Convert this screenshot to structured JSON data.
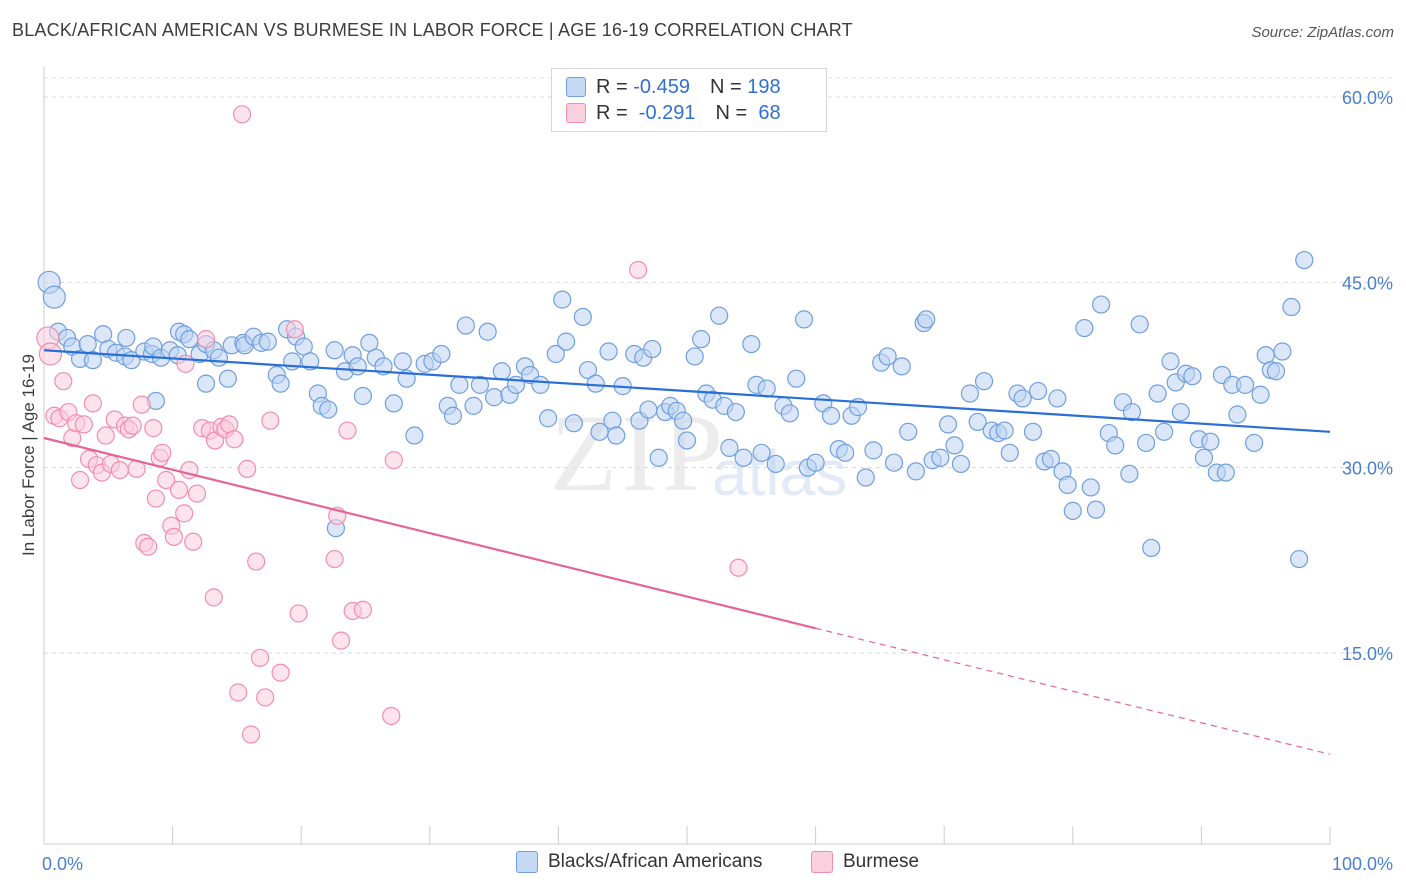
{
  "header": {
    "title": "BLACK/AFRICAN AMERICAN VS BURMESE IN LABOR FORCE | AGE 16-19 CORRELATION CHART",
    "source": "Source: ZipAtlas.com"
  },
  "watermark": {
    "zip": "ZIP",
    "atlas": "atlas"
  },
  "legend": {
    "rows": [
      {
        "r_label": "R = ",
        "r_value": "-0.459",
        "n_label": "N = ",
        "n_value": "198",
        "color": "#6f9fe0"
      },
      {
        "r_label": "R = ",
        "r_value": " -0.291",
        "n_label": "N = ",
        "n_value": " 68",
        "color": "#f28db0"
      }
    ]
  },
  "bottom_legend": [
    {
      "label": "Blacks/African Americans",
      "color": "#6f9fe0"
    },
    {
      "label": "Burmese",
      "color": "#f28db0"
    }
  ],
  "chart_data": {
    "type": "scatter",
    "title": "BLACK/AFRICAN AMERICAN VS BURMESE IN LABOR FORCE | AGE 16-19 CORRELATION CHART",
    "xlabel": "",
    "ylabel": "In Labor Force | Age 16-19",
    "xlim": [
      0,
      100
    ],
    "ylim": [
      0,
      65
    ],
    "x_tick_labels": [
      "0.0%",
      "100.0%"
    ],
    "y_ticks": [
      15,
      30,
      45,
      60
    ],
    "y_tick_labels": [
      "15.0%",
      "30.0%",
      "45.0%",
      "60.0%"
    ],
    "grid": true,
    "legend_position": "top-center",
    "series": [
      {
        "name": "Blacks/African Americans",
        "color": "#6f9fe0",
        "trend": {
          "x0": 0,
          "y0": 39.5,
          "x1": 100,
          "y1": 32.9,
          "dashed_from": null
        },
        "points": [
          [
            0.4,
            45.0
          ],
          [
            0.8,
            43.8
          ],
          [
            1.1,
            41.0
          ],
          [
            1.8,
            40.5
          ],
          [
            2.2,
            39.8
          ],
          [
            2.8,
            38.8
          ],
          [
            3.4,
            40.0
          ],
          [
            3.8,
            38.7
          ],
          [
            4.6,
            40.8
          ],
          [
            5.0,
            39.6
          ],
          [
            5.6,
            39.3
          ],
          [
            6.3,
            39.0
          ],
          [
            6.4,
            40.5
          ],
          [
            6.8,
            38.7
          ],
          [
            7.8,
            39.4
          ],
          [
            8.4,
            39.2
          ],
          [
            8.5,
            39.8
          ],
          [
            8.7,
            35.4
          ],
          [
            9.1,
            38.9
          ],
          [
            9.8,
            39.5
          ],
          [
            10.4,
            39.1
          ],
          [
            10.5,
            41.0
          ],
          [
            10.9,
            40.8
          ],
          [
            11.3,
            40.4
          ],
          [
            12.1,
            39.2
          ],
          [
            12.6,
            36.8
          ],
          [
            12.6,
            40.0
          ],
          [
            13.2,
            39.5
          ],
          [
            13.6,
            38.9
          ],
          [
            14.3,
            37.2
          ],
          [
            14.6,
            39.9
          ],
          [
            15.5,
            40.1
          ],
          [
            15.6,
            39.9
          ],
          [
            16.3,
            40.6
          ],
          [
            16.9,
            40.1
          ],
          [
            17.4,
            40.2
          ],
          [
            18.1,
            37.5
          ],
          [
            18.4,
            36.8
          ],
          [
            18.9,
            41.2
          ],
          [
            19.3,
            38.6
          ],
          [
            19.6,
            40.6
          ],
          [
            20.2,
            39.8
          ],
          [
            20.7,
            38.6
          ],
          [
            21.3,
            36.0
          ],
          [
            21.6,
            35.0
          ],
          [
            22.1,
            34.7
          ],
          [
            22.6,
            39.5
          ],
          [
            22.7,
            25.1
          ],
          [
            23.4,
            37.8
          ],
          [
            24.0,
            39.1
          ],
          [
            24.4,
            38.2
          ],
          [
            24.8,
            35.8
          ],
          [
            25.3,
            40.1
          ],
          [
            25.8,
            38.9
          ],
          [
            26.4,
            38.2
          ],
          [
            27.2,
            35.2
          ],
          [
            27.9,
            38.6
          ],
          [
            28.2,
            37.2
          ],
          [
            28.8,
            32.6
          ],
          [
            29.6,
            38.4
          ],
          [
            30.2,
            38.6
          ],
          [
            30.9,
            39.2
          ],
          [
            31.4,
            35.0
          ],
          [
            31.8,
            34.2
          ],
          [
            32.3,
            36.7
          ],
          [
            32.8,
            41.5
          ],
          [
            33.4,
            35.0
          ],
          [
            33.9,
            36.7
          ],
          [
            34.5,
            41.0
          ],
          [
            35.0,
            35.7
          ],
          [
            35.6,
            37.8
          ],
          [
            36.2,
            35.9
          ],
          [
            36.7,
            36.7
          ],
          [
            37.4,
            38.2
          ],
          [
            37.8,
            37.5
          ],
          [
            38.6,
            36.7
          ],
          [
            39.2,
            34.0
          ],
          [
            39.8,
            39.2
          ],
          [
            40.3,
            43.6
          ],
          [
            40.6,
            40.2
          ],
          [
            41.2,
            33.6
          ],
          [
            41.9,
            42.2
          ],
          [
            42.3,
            37.9
          ],
          [
            42.9,
            36.8
          ],
          [
            43.2,
            32.9
          ],
          [
            43.9,
            39.4
          ],
          [
            44.2,
            33.8
          ],
          [
            44.5,
            32.6
          ],
          [
            45.0,
            36.6
          ],
          [
            45.9,
            39.2
          ],
          [
            46.3,
            33.8
          ],
          [
            46.6,
            38.9
          ],
          [
            47.0,
            34.7
          ],
          [
            47.3,
            39.6
          ],
          [
            47.8,
            30.8
          ],
          [
            48.3,
            34.5
          ],
          [
            48.7,
            35.0
          ],
          [
            49.2,
            34.6
          ],
          [
            49.7,
            33.8
          ],
          [
            50.0,
            32.2
          ],
          [
            50.6,
            39.0
          ],
          [
            51.1,
            40.4
          ],
          [
            51.5,
            36.0
          ],
          [
            52.0,
            35.5
          ],
          [
            52.5,
            42.3
          ],
          [
            52.9,
            35.0
          ],
          [
            53.3,
            31.6
          ],
          [
            53.8,
            34.5
          ],
          [
            54.4,
            30.8
          ],
          [
            55.0,
            40.0
          ],
          [
            55.4,
            36.7
          ],
          [
            55.8,
            31.2
          ],
          [
            56.2,
            36.4
          ],
          [
            56.9,
            30.3
          ],
          [
            57.5,
            35.0
          ],
          [
            58.0,
            34.4
          ],
          [
            58.5,
            37.2
          ],
          [
            59.1,
            42.0
          ],
          [
            59.4,
            30.0
          ],
          [
            60.0,
            30.4
          ],
          [
            60.6,
            35.2
          ],
          [
            61.2,
            34.2
          ],
          [
            61.8,
            31.5
          ],
          [
            62.3,
            31.2
          ],
          [
            62.8,
            34.2
          ],
          [
            63.3,
            34.9
          ],
          [
            63.9,
            29.2
          ],
          [
            64.5,
            31.4
          ],
          [
            65.1,
            38.5
          ],
          [
            65.6,
            39.0
          ],
          [
            66.1,
            30.4
          ],
          [
            66.7,
            38.2
          ],
          [
            67.2,
            32.9
          ],
          [
            67.8,
            29.7
          ],
          [
            68.4,
            41.7
          ],
          [
            68.6,
            42.0
          ],
          [
            69.1,
            30.6
          ],
          [
            69.7,
            30.8
          ],
          [
            70.3,
            33.5
          ],
          [
            70.8,
            31.8
          ],
          [
            71.3,
            30.3
          ],
          [
            72.0,
            36.0
          ],
          [
            72.6,
            33.7
          ],
          [
            73.1,
            37.0
          ],
          [
            73.7,
            33.0
          ],
          [
            74.2,
            32.8
          ],
          [
            74.7,
            33.0
          ],
          [
            75.1,
            31.2
          ],
          [
            75.7,
            36.0
          ],
          [
            76.1,
            35.6
          ],
          [
            76.9,
            32.9
          ],
          [
            77.3,
            36.2
          ],
          [
            77.8,
            30.5
          ],
          [
            78.3,
            30.7
          ],
          [
            78.8,
            35.6
          ],
          [
            79.2,
            29.7
          ],
          [
            79.6,
            28.6
          ],
          [
            80.0,
            26.5
          ],
          [
            80.9,
            41.3
          ],
          [
            81.4,
            28.4
          ],
          [
            81.8,
            26.6
          ],
          [
            82.2,
            43.2
          ],
          [
            82.8,
            32.8
          ],
          [
            83.3,
            31.8
          ],
          [
            83.9,
            35.3
          ],
          [
            84.4,
            29.5
          ],
          [
            84.6,
            34.5
          ],
          [
            85.2,
            41.6
          ],
          [
            85.7,
            32.0
          ],
          [
            86.1,
            23.5
          ],
          [
            86.6,
            36.0
          ],
          [
            87.1,
            32.9
          ],
          [
            87.6,
            38.6
          ],
          [
            88.0,
            36.9
          ],
          [
            88.4,
            34.5
          ],
          [
            88.8,
            37.6
          ],
          [
            89.3,
            37.4
          ],
          [
            89.8,
            32.3
          ],
          [
            90.2,
            30.8
          ],
          [
            90.7,
            32.1
          ],
          [
            91.2,
            29.6
          ],
          [
            91.6,
            37.5
          ],
          [
            91.9,
            29.6
          ],
          [
            92.4,
            36.7
          ],
          [
            92.8,
            34.3
          ],
          [
            93.4,
            36.7
          ],
          [
            94.1,
            32.0
          ],
          [
            94.6,
            35.9
          ],
          [
            95.0,
            39.1
          ],
          [
            95.4,
            37.9
          ],
          [
            95.8,
            37.8
          ],
          [
            96.3,
            39.4
          ],
          [
            97.0,
            43.0
          ],
          [
            97.6,
            22.6
          ],
          [
            98.0,
            46.8
          ]
        ]
      },
      {
        "name": "Burmese",
        "color": "#f28db0",
        "trend": {
          "x0": 0,
          "y0": 32.4,
          "x1": 60,
          "y1": 17.0,
          "dashed_to_x": 100,
          "dashed_to_y": 6.8
        },
        "points": [
          [
            0.3,
            40.5
          ],
          [
            0.5,
            39.2
          ],
          [
            0.8,
            34.2
          ],
          [
            1.2,
            34.0
          ],
          [
            1.5,
            37.0
          ],
          [
            1.9,
            34.5
          ],
          [
            2.2,
            32.4
          ],
          [
            2.5,
            33.6
          ],
          [
            2.8,
            29.0
          ],
          [
            3.1,
            33.5
          ],
          [
            3.5,
            30.7
          ],
          [
            3.8,
            35.2
          ],
          [
            4.1,
            30.2
          ],
          [
            4.5,
            29.6
          ],
          [
            4.8,
            32.6
          ],
          [
            5.2,
            30.3
          ],
          [
            5.5,
            33.9
          ],
          [
            5.9,
            29.8
          ],
          [
            6.3,
            33.4
          ],
          [
            6.6,
            33.1
          ],
          [
            6.9,
            33.4
          ],
          [
            7.2,
            29.9
          ],
          [
            7.6,
            35.1
          ],
          [
            7.8,
            23.9
          ],
          [
            8.1,
            23.6
          ],
          [
            8.5,
            33.2
          ],
          [
            8.7,
            27.5
          ],
          [
            9.0,
            30.8
          ],
          [
            9.2,
            31.2
          ],
          [
            9.5,
            29.0
          ],
          [
            9.9,
            25.3
          ],
          [
            10.1,
            24.4
          ],
          [
            10.5,
            28.2
          ],
          [
            10.9,
            26.3
          ],
          [
            11.0,
            38.4
          ],
          [
            11.3,
            29.8
          ],
          [
            11.6,
            24.0
          ],
          [
            11.9,
            27.9
          ],
          [
            12.3,
            33.2
          ],
          [
            12.6,
            40.4
          ],
          [
            12.9,
            33.0
          ],
          [
            13.2,
            19.5
          ],
          [
            13.3,
            32.2
          ],
          [
            13.8,
            33.3
          ],
          [
            14.1,
            33.1
          ],
          [
            14.4,
            33.5
          ],
          [
            14.8,
            32.3
          ],
          [
            15.1,
            11.8
          ],
          [
            15.4,
            58.6
          ],
          [
            15.8,
            29.9
          ],
          [
            16.1,
            8.4
          ],
          [
            16.5,
            22.4
          ],
          [
            16.8,
            14.6
          ],
          [
            17.2,
            11.4
          ],
          [
            17.6,
            33.8
          ],
          [
            18.4,
            13.4
          ],
          [
            19.5,
            41.2
          ],
          [
            19.8,
            18.2
          ],
          [
            22.6,
            22.6
          ],
          [
            22.8,
            26.1
          ],
          [
            23.1,
            16.0
          ],
          [
            23.6,
            33.0
          ],
          [
            24.0,
            18.4
          ],
          [
            24.8,
            18.5
          ],
          [
            27.2,
            30.6
          ],
          [
            27.0,
            9.9
          ],
          [
            46.2,
            46.0
          ],
          [
            54.0,
            21.9
          ]
        ]
      }
    ]
  }
}
